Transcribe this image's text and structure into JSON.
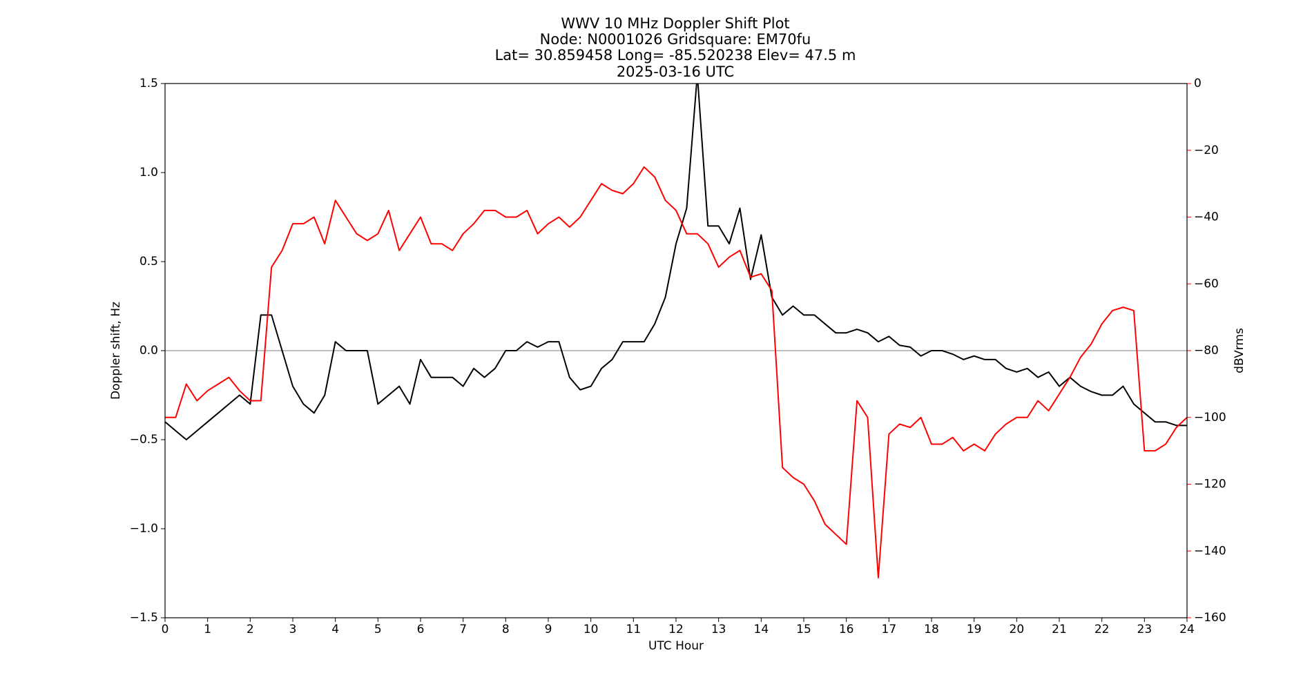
{
  "chart_data": {
    "type": "line",
    "title": [
      "WWV 10 MHz Doppler Shift Plot",
      "Node:  N0001026     Gridsquare:  EM70fu",
      "Lat= 30.859458    Long= -85.520238    Elev= 47.5 m",
      "2025-03-16  UTC"
    ],
    "xlabel": "UTC Hour",
    "ylabel": "Doppler shift, Hz",
    "y2label": "dBVrms",
    "x": [
      0,
      0.25,
      0.5,
      0.75,
      1,
      1.25,
      1.5,
      1.75,
      2,
      2.25,
      2.5,
      2.75,
      3,
      3.25,
      3.5,
      3.75,
      4,
      4.25,
      4.5,
      4.75,
      5,
      5.25,
      5.5,
      5.75,
      6,
      6.25,
      6.5,
      6.75,
      7,
      7.25,
      7.5,
      7.75,
      8,
      8.25,
      8.5,
      8.75,
      9,
      9.25,
      9.5,
      9.75,
      10,
      10.25,
      10.5,
      10.75,
      11,
      11.25,
      11.5,
      11.75,
      12,
      12.25,
      12.5,
      12.75,
      13,
      13.25,
      13.5,
      13.75,
      14,
      14.25,
      14.5,
      14.75,
      15,
      15.25,
      15.5,
      15.75,
      16,
      16.25,
      16.5,
      16.75,
      17,
      17.25,
      17.5,
      17.75,
      18,
      18.25,
      18.5,
      18.75,
      19,
      19.25,
      19.5,
      19.75,
      20,
      20.25,
      20.5,
      20.75,
      21,
      21.25,
      21.5,
      21.75,
      22,
      22.25,
      22.5,
      22.75,
      23,
      23.25,
      23.5,
      23.75,
      24
    ],
    "series": [
      {
        "name": "Doppler shift",
        "color": "#000000",
        "axis": "y",
        "values": [
          -0.4,
          -0.45,
          -0.5,
          -0.45,
          -0.4,
          -0.35,
          -0.3,
          -0.25,
          -0.3,
          0.2,
          0.2,
          0.0,
          -0.2,
          -0.3,
          -0.35,
          -0.25,
          0.05,
          0,
          0,
          0,
          -0.3,
          -0.25,
          -0.2,
          -0.3,
          -0.05,
          -0.15,
          -0.15,
          -0.15,
          -0.2,
          -0.1,
          -0.15,
          -0.1,
          0,
          0,
          0.05,
          0.02,
          0.05,
          0.05,
          -0.15,
          -0.22,
          -0.2,
          -0.1,
          -0.05,
          0.05,
          0.05,
          0.05,
          0.15,
          0.3,
          0.6,
          0.8,
          1.55,
          0.7,
          0.7,
          0.6,
          0.8,
          0.4,
          0.65,
          0.3,
          0.2,
          0.25,
          0.2,
          0.2,
          0.15,
          0.1,
          0.1,
          0.12,
          0.1,
          0.05,
          0.08,
          0.03,
          0.02,
          -0.03,
          0,
          0,
          -0.02,
          -0.05,
          -0.03,
          -0.05,
          -0.05,
          -0.1,
          -0.12,
          -0.1,
          -0.15,
          -0.12,
          -0.2,
          -0.15,
          -0.2,
          -0.23,
          -0.25,
          -0.25,
          -0.2,
          -0.3,
          -0.35,
          -0.4,
          -0.4,
          -0.42,
          -0.42
        ]
      },
      {
        "name": "dBVrms",
        "color": "#ff0000",
        "axis": "y2",
        "values": [
          -100,
          -100,
          -90,
          -95,
          -92,
          -90,
          -88,
          -92,
          -95,
          -95,
          -55,
          -50,
          -42,
          -42,
          -40,
          -48,
          -35,
          -40,
          -45,
          -47,
          -45,
          -38,
          -50,
          -45,
          -40,
          -48,
          -48,
          -50,
          -45,
          -42,
          -38,
          -38,
          -40,
          -40,
          -38,
          -45,
          -42,
          -40,
          -43,
          -40,
          -35,
          -30,
          -32,
          -33,
          -30,
          -25,
          -28,
          -35,
          -38,
          -45,
          -45,
          -48,
          -55,
          -52,
          -50,
          -58,
          -57,
          -62,
          -115,
          -118,
          -120,
          -125,
          -132,
          -135,
          -138,
          -95,
          -100,
          -148,
          -105,
          -102,
          -103,
          -100,
          -108,
          -108,
          -106,
          -110,
          -108,
          -110,
          -105,
          -102,
          -100,
          -100,
          -95,
          -98,
          -93,
          -88,
          -82,
          -78,
          -72,
          -68,
          -67,
          -68,
          -110,
          -110,
          -108,
          -103,
          -100
        ]
      }
    ],
    "xlim": [
      0,
      24
    ],
    "xticks": [
      0,
      1,
      2,
      3,
      4,
      5,
      6,
      7,
      8,
      9,
      10,
      11,
      12,
      13,
      14,
      15,
      16,
      17,
      18,
      19,
      20,
      21,
      22,
      23,
      24
    ],
    "ylim": [
      -1.5,
      1.5
    ],
    "yticks": [
      {
        "value": -1.5,
        "label": "−1.5"
      },
      {
        "value": -1.0,
        "label": "−1.0"
      },
      {
        "value": -0.5,
        "label": "−0.5"
      },
      {
        "value": 0.0,
        "label": "0.0"
      },
      0.5,
      {
        "value": 1.0,
        "label": "1.0"
      },
      1.5
    ],
    "y2lim": [
      -160,
      0
    ],
    "y2ticks": [
      {
        "value": -160,
        "label": "−160"
      },
      {
        "value": -140,
        "label": "−140"
      },
      {
        "value": -120,
        "label": "−120"
      },
      {
        "value": -100,
        "label": "−100"
      },
      {
        "value": -80,
        "label": "−80"
      },
      {
        "value": -60,
        "label": "−60"
      },
      {
        "value": -40,
        "label": "−40"
      },
      {
        "value": -20,
        "label": "−20"
      },
      0
    ],
    "y2color": "#ff0000",
    "zero_line": true
  }
}
